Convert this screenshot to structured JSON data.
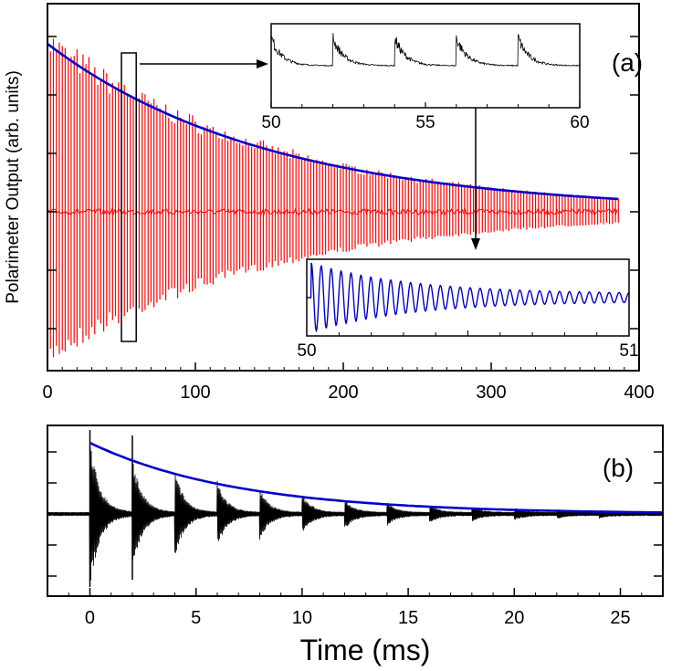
{
  "chart_data": [
    {
      "panel": "(a)",
      "type": "line",
      "ylabel": "Polarimeter Output (arb. units)",
      "xlim": [
        0,
        400
      ],
      "xticks": [
        0,
        100,
        200,
        300,
        400
      ],
      "series": [
        {
          "name": "polarimeter signal",
          "color": "#ff0000",
          "pulse_period": 2,
          "start": 0,
          "end": 386,
          "amplitude_start": 1.0,
          "decay_time": 150
        },
        {
          "name": "exponential envelope fit",
          "color": "#0000cc",
          "start": 0,
          "end": 386,
          "amplitude_start": 0.92,
          "decay_time": 150
        }
      ],
      "highlight_window": [
        50,
        60
      ],
      "insets": [
        {
          "name": "zoom 50-60",
          "xlim": [
            50,
            60
          ],
          "xticks": [
            50,
            55,
            60
          ],
          "color": "#000000",
          "pulse_times": [
            50,
            52,
            54,
            56,
            58
          ]
        },
        {
          "name": "zoom 50-51",
          "xlim": [
            50,
            51
          ],
          "xticks": [
            50,
            51
          ],
          "color": "#0000cc",
          "oscillations": 32
        }
      ]
    },
    {
      "panel": "(b)",
      "type": "line",
      "xlabel": "Time (ms)",
      "xlim": [
        -2,
        27
      ],
      "xticks": [
        0,
        5,
        10,
        15,
        20,
        25
      ],
      "series": [
        {
          "name": "signal",
          "color": "#000000",
          "pulse_times": [
            0,
            2,
            4,
            6,
            8,
            10,
            12,
            14,
            16,
            18,
            20,
            22,
            24
          ],
          "amplitude_start": 1.0,
          "decay_time": 7
        },
        {
          "name": "exponential envelope fit",
          "color": "#0000cc",
          "start": 0,
          "end": 27,
          "amplitude_start": 0.95,
          "decay_time": 7
        }
      ]
    }
  ]
}
